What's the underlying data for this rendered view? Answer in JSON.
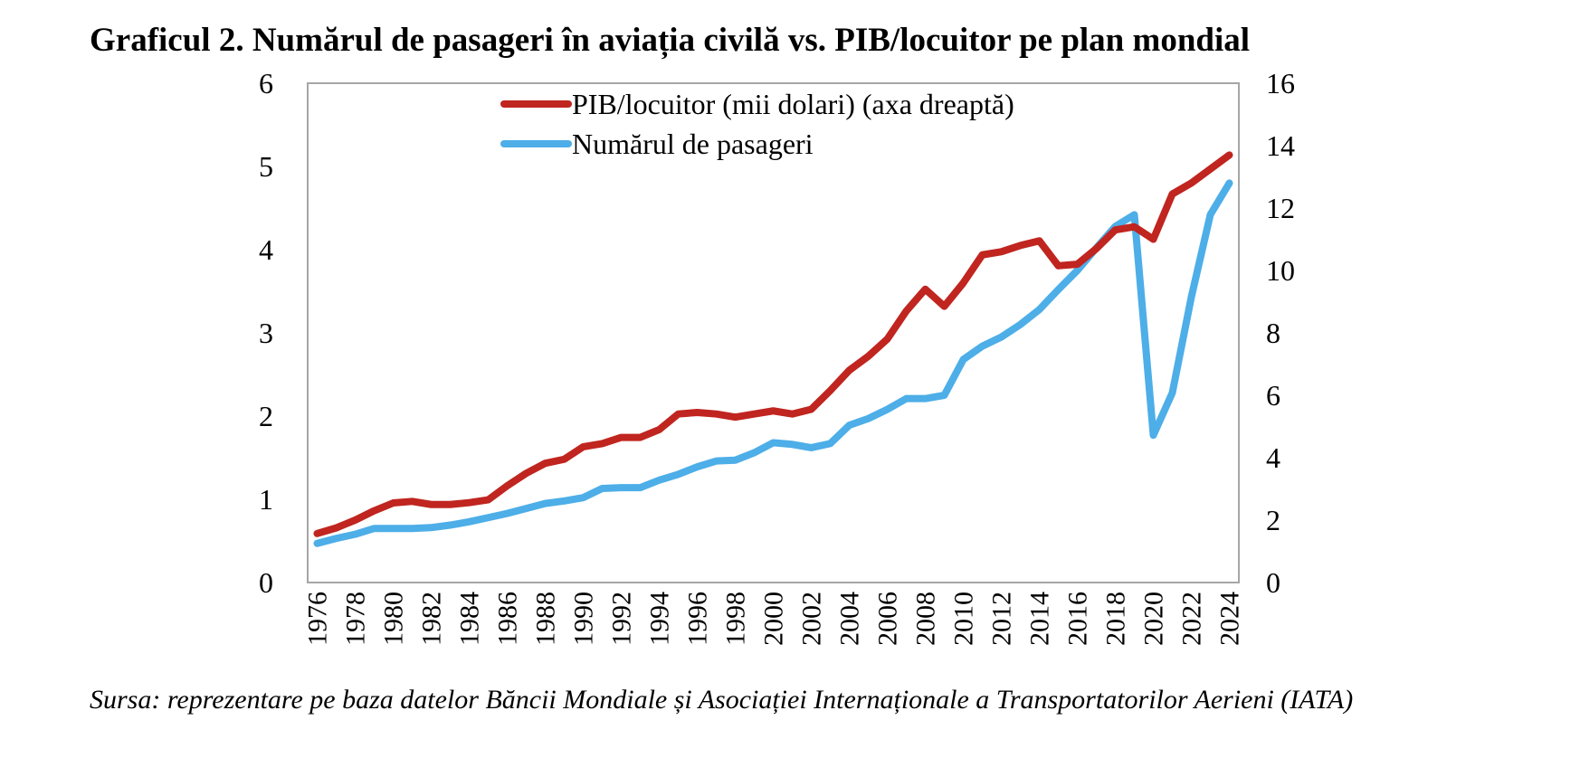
{
  "chart_data": {
    "type": "line",
    "title": "Graficul 2. Numărul de pasageri în aviația civilă vs. PIB/locuitor pe plan mondial",
    "source": "Sursa: reprezentare pe baza datelor Băncii Mondiale și Asociației Internaționale a Transportatorilor Aerieni (IATA)",
    "categories": [
      "1976",
      null,
      "1978",
      null,
      "1980",
      null,
      "1982",
      null,
      "1984",
      null,
      "1986",
      null,
      "1988",
      null,
      "1990",
      null,
      "1992",
      null,
      "1994",
      null,
      "1996",
      null,
      "1998",
      null,
      "2000",
      null,
      "2002",
      null,
      "2004",
      null,
      "2006",
      null,
      "2008",
      null,
      "2010",
      null,
      "2012",
      null,
      "2014",
      null,
      "2016",
      null,
      "2018",
      null,
      "2020",
      null,
      "2022",
      null,
      "2024"
    ],
    "series": [
      {
        "name": "PIB/locuitor (mii dolari) (axa dreaptă)",
        "color": "#c0251f",
        "axis": "y2",
        "values": [
          1.57,
          1.75,
          2.0,
          2.3,
          2.55,
          2.6,
          2.5,
          2.5,
          2.56,
          2.65,
          3.1,
          3.5,
          3.82,
          3.95,
          4.35,
          4.45,
          4.65,
          4.65,
          4.9,
          5.4,
          5.45,
          5.4,
          5.3,
          5.4,
          5.5,
          5.4,
          5.55,
          6.15,
          6.8,
          7.25,
          7.8,
          8.7,
          9.4,
          8.85,
          9.6,
          10.5,
          10.6,
          10.8,
          10.95,
          10.15,
          10.2,
          10.7,
          11.3,
          11.4,
          11.0,
          12.45,
          12.8,
          13.25,
          13.7
        ]
      },
      {
        "name": "Numărul de pasageri",
        "color": "#4daee8",
        "values": [
          0.47,
          0.53,
          0.58,
          0.65,
          0.65,
          0.65,
          0.66,
          0.69,
          0.73,
          0.78,
          0.83,
          0.89,
          0.95,
          0.98,
          1.02,
          1.13,
          1.14,
          1.14,
          1.23,
          1.3,
          1.39,
          1.46,
          1.47,
          1.56,
          1.68,
          1.66,
          1.62,
          1.67,
          1.89,
          1.97,
          2.08,
          2.21,
          2.21,
          2.25,
          2.68,
          2.84,
          2.95,
          3.1,
          3.28,
          3.52,
          3.75,
          4.02,
          4.28,
          4.42,
          1.77,
          2.28,
          3.43,
          4.42,
          4.8
        ]
      }
    ],
    "ylim": [
      0,
      6
    ],
    "yticks": [
      0,
      1,
      2,
      3,
      4,
      5,
      6
    ],
    "y2lim": [
      0,
      16
    ],
    "y2ticks": [
      0,
      2,
      4,
      6,
      8,
      10,
      12,
      14,
      16
    ],
    "legend": "top"
  }
}
